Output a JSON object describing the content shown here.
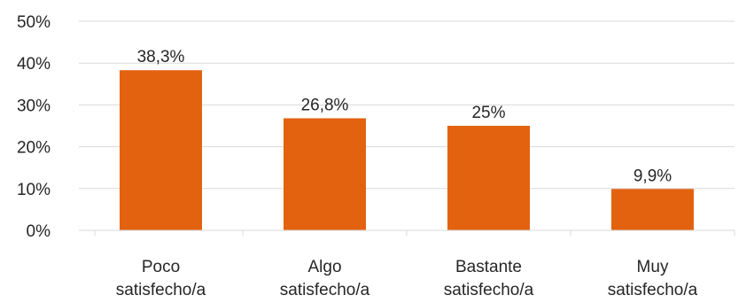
{
  "chart_data": {
    "type": "bar",
    "title": "",
    "xlabel": "",
    "ylabel": "",
    "categories": [
      [
        "Poco",
        "satisfecho/a"
      ],
      [
        "Algo",
        "satisfecho/a"
      ],
      [
        "Bastante",
        "satisfecho/a"
      ],
      [
        "Muy",
        "satisfecho/a"
      ]
    ],
    "values": [
      38.3,
      26.8,
      25,
      9.9
    ],
    "data_labels": [
      "38,3%",
      "26,8%",
      "25%",
      "9,9%"
    ],
    "yticks": [
      0,
      10,
      20,
      30,
      40,
      50
    ],
    "ytick_labels": [
      "0%",
      "10%",
      "20%",
      "30%",
      "40%",
      "50%"
    ],
    "ylim": [
      0,
      50
    ],
    "grid": true,
    "bar_color": "#E36210",
    "grid_color": "#D9D9D9"
  }
}
